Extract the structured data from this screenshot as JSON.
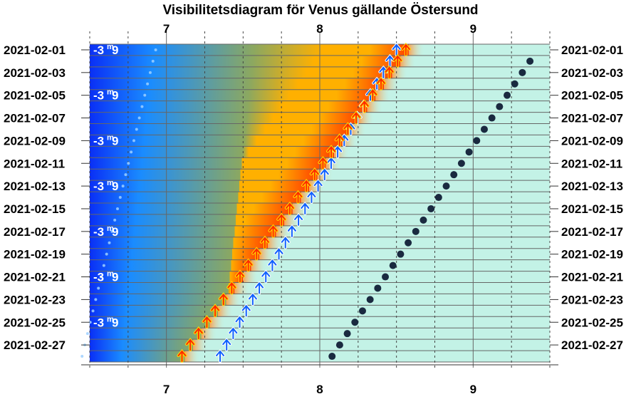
{
  "chart_data": {
    "type": "scatter",
    "title": "Visibilitetsdiagram för Venus gällande Östersund",
    "xlabel": "",
    "ylabel": "",
    "x_axis_unit": "hour",
    "xlim": [
      6.5,
      9.5
    ],
    "x_ticks": [
      7,
      8,
      9
    ],
    "dates": [
      "2021-02-01",
      "2021-02-03",
      "2021-02-05",
      "2021-02-07",
      "2021-02-09",
      "2021-02-11",
      "2021-02-13",
      "2021-02-15",
      "2021-02-17",
      "2021-02-19",
      "2021-02-21",
      "2021-02-23",
      "2021-02-25",
      "2021-02-27"
    ],
    "first_date": "2021-02-01",
    "day_count": 28,
    "magnitudes": [
      {
        "day": 1,
        "text": "-3",
        "sup": "m",
        "frac": "9"
      },
      {
        "day": 5,
        "text": "-3",
        "sup": "m",
        "frac": "9"
      },
      {
        "day": 9,
        "text": "-3",
        "sup": "m",
        "frac": "9"
      },
      {
        "day": 13,
        "text": "-3",
        "sup": "m",
        "frac": "9"
      },
      {
        "day": 17,
        "text": "-3",
        "sup": "m",
        "frac": "9"
      },
      {
        "day": 21,
        "text": "-3",
        "sup": "m",
        "frac": "9"
      },
      {
        "day": 25,
        "text": "-3",
        "sup": "m",
        "frac": "9"
      }
    ],
    "sunrise": {
      "start_hour": 8.58,
      "end_hour": 7.12
    },
    "venus_rise": {
      "start_hour": 8.5,
      "end_hour": 7.35
    },
    "venus_culmination_dots": {
      "start_hour": 6.93,
      "end_hour": 6.45
    },
    "venus_transit": {
      "start_hour": 9.42,
      "end_hour": 8.08
    },
    "colors": {
      "night": "#0a2ff5",
      "twilight_blue": "#1a8cff",
      "twilight_olive": "#8ca860",
      "dawn_orange": "#ffb000",
      "sunrise_red": "#ff4000",
      "daylight": "#c3f2e6",
      "transit_dot": "#1a2a40",
      "rise_arrow": "#1060ff",
      "sun_arrow": "#ff2a00"
    }
  }
}
